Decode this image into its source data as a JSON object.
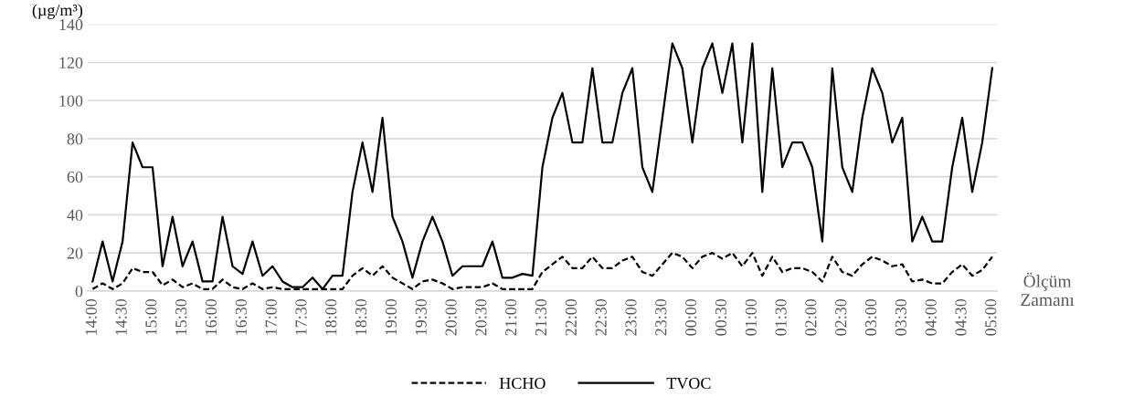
{
  "chart_data": {
    "type": "line",
    "ylabel": "(µg/m³)",
    "xlabel": "Ölçüm Zamanı",
    "categories": [
      "14:00",
      null,
      null,
      "14:30",
      null,
      null,
      "15:00",
      null,
      null,
      "15:30",
      null,
      null,
      "16:00",
      null,
      null,
      "16:30",
      null,
      null,
      "17:00",
      null,
      null,
      "17:30",
      null,
      null,
      "18:00",
      null,
      null,
      "18:30",
      null,
      null,
      "19:00",
      null,
      null,
      "19:30",
      null,
      null,
      "20:00",
      null,
      null,
      "20:30",
      null,
      null,
      "21:00",
      null,
      null,
      "21:30",
      null,
      null,
      "22:00",
      null,
      null,
      "22:30",
      null,
      null,
      "23:00",
      null,
      null,
      "23:30",
      null,
      null,
      "00:00",
      null,
      null,
      "00:30",
      null,
      null,
      "01:00",
      null,
      null,
      "01:30",
      null,
      null,
      "02:00",
      null,
      null,
      "02:30",
      null,
      null,
      "03:00",
      null,
      null,
      "03:30",
      null,
      null,
      "04:00",
      null,
      null,
      "04:30",
      null,
      null,
      "05:00"
    ],
    "series": [
      {
        "name": "HCHO",
        "color": "#000000",
        "line_style": "dashed",
        "values": [
          1,
          4,
          1,
          4,
          12,
          10,
          10,
          3,
          6,
          2,
          4,
          1,
          1,
          6,
          2,
          1,
          4,
          1,
          2,
          1,
          1,
          1,
          1,
          1,
          1,
          1,
          8,
          12,
          8,
          13,
          7,
          4,
          1,
          5,
          6,
          4,
          1,
          2,
          2,
          2,
          4,
          1,
          1,
          1,
          1,
          10,
          14,
          18,
          12,
          12,
          18,
          12,
          12,
          16,
          18,
          10,
          8,
          14,
          20,
          18,
          12,
          18,
          20,
          17,
          20,
          13,
          20,
          8,
          18,
          10,
          12,
          12,
          10,
          5,
          18,
          10,
          8,
          14,
          18,
          16,
          13,
          14,
          5,
          6,
          4,
          4,
          10,
          14,
          8,
          11,
          18
        ]
      },
      {
        "name": "TVOC",
        "color": "#000000",
        "line_style": "solid",
        "values": [
          5,
          26,
          5,
          26,
          78,
          65,
          65,
          13,
          39,
          13,
          26,
          5,
          5,
          39,
          13,
          9,
          26,
          8,
          13,
          5,
          2,
          2,
          7,
          1,
          8,
          8,
          52,
          78,
          52,
          91,
          39,
          26,
          7,
          26,
          39,
          26,
          8,
          13,
          13,
          13,
          26,
          7,
          7,
          9,
          8,
          65,
          91,
          104,
          78,
          78,
          117,
          78,
          78,
          104,
          117,
          65,
          52,
          91,
          130,
          117,
          78,
          117,
          130,
          104,
          130,
          78,
          130,
          52,
          117,
          65,
          78,
          78,
          65,
          26,
          117,
          65,
          52,
          91,
          117,
          104,
          78,
          91,
          26,
          39,
          26,
          26,
          65,
          91,
          52,
          78,
          117
        ]
      }
    ],
    "ylim": [
      0,
      140
    ],
    "yticks": [
      0,
      20,
      40,
      60,
      80,
      100,
      120,
      140
    ],
    "grid": "y",
    "legend": "bottom",
    "marker": "none"
  }
}
